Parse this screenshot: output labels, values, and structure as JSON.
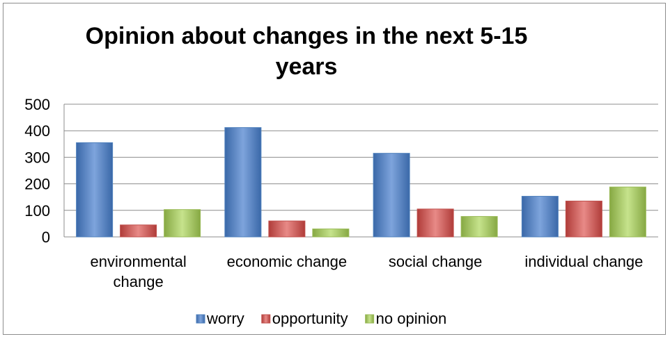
{
  "chart_data": {
    "type": "bar",
    "title": "Opinion about changes in the next 5-15 years",
    "categories": [
      [
        "environmental",
        "change"
      ],
      [
        "economic change"
      ],
      [
        "social change"
      ],
      [
        "individual change"
      ]
    ],
    "series": [
      {
        "name": "worry",
        "values": [
          355,
          412,
          315,
          153
        ],
        "color": "#4f81bd"
      },
      {
        "name": "opportunity",
        "values": [
          45,
          60,
          105,
          135
        ],
        "color": "#c0504d"
      },
      {
        "name": "no opinion",
        "values": [
          103,
          30,
          77,
          188
        ],
        "color": "#9bbb59"
      }
    ],
    "ylim": [
      0,
      500
    ],
    "yticks": [
      0,
      100,
      200,
      300,
      400,
      500
    ],
    "grid": true,
    "legend": "bottom"
  }
}
